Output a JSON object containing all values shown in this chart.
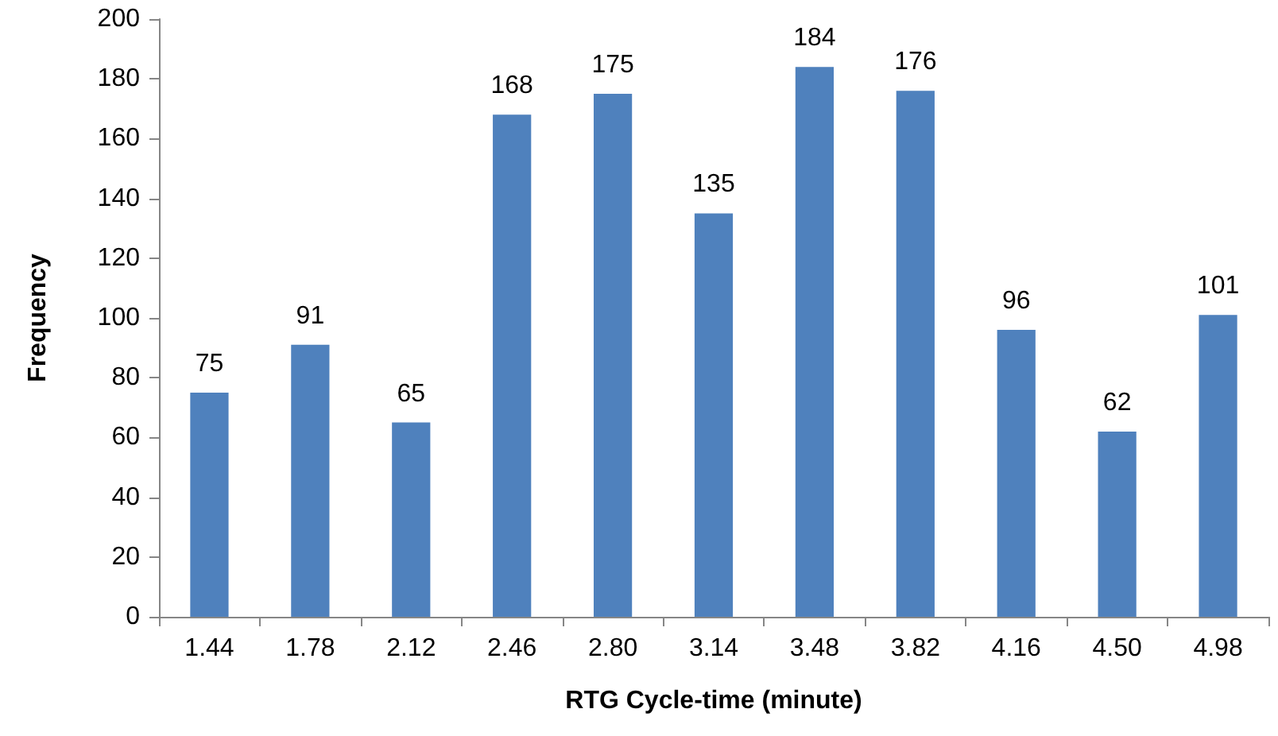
{
  "chart_data": {
    "type": "bar",
    "xlabel": "RTG Cycle-time (minute)",
    "ylabel": "Frequency",
    "categories": [
      "1.44",
      "1.78",
      "2.12",
      "2.46",
      "2.80",
      "3.14",
      "3.48",
      "3.82",
      "4.16",
      "4.50",
      "4.98"
    ],
    "values": [
      75,
      91,
      65,
      168,
      175,
      135,
      184,
      176,
      96,
      62,
      101
    ],
    "color": "#4f81bd",
    "ylim": [
      0,
      200
    ],
    "yticks": [
      0,
      20,
      40,
      60,
      80,
      100,
      120,
      140,
      160,
      180,
      200
    ],
    "data_labels": true,
    "grid": false
  }
}
